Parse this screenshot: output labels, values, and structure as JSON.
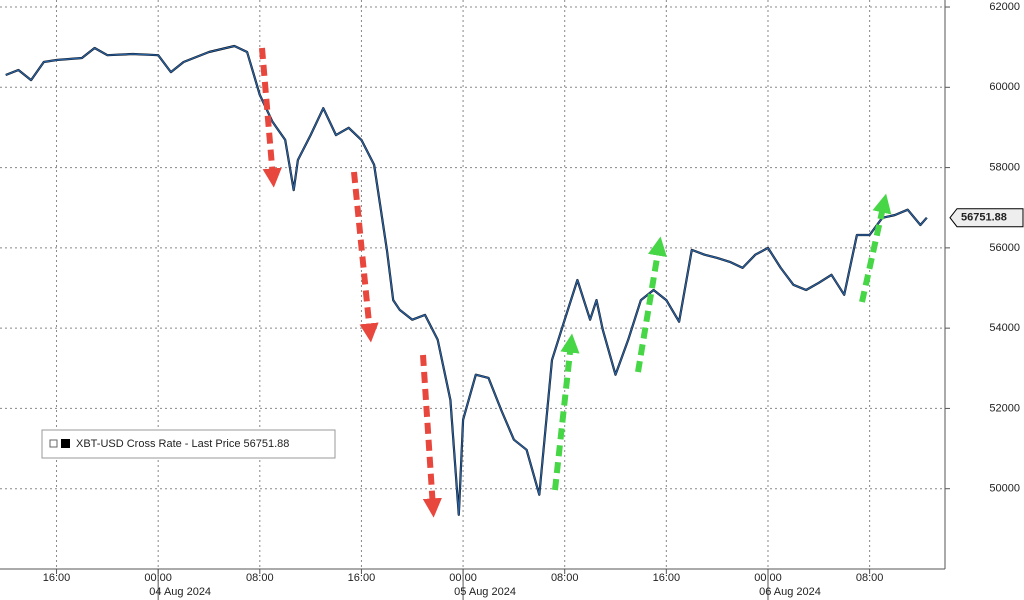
{
  "chart_data": {
    "type": "line",
    "series": [
      {
        "name": "XBT-USD Cross Rate - Last Price",
        "color": "#2a5f9e",
        "last_value": 56751.88,
        "x": [
          "2024-08-03T12:00",
          "2024-08-03T13:00",
          "2024-08-03T14:00",
          "2024-08-03T15:00",
          "2024-08-03T16:00",
          "2024-08-03T18:00",
          "2024-08-03T19:00",
          "2024-08-03T20:00",
          "2024-08-03T22:00",
          "2024-08-04T00:00",
          "2024-08-04T01:00",
          "2024-08-04T02:00",
          "2024-08-04T04:00",
          "2024-08-04T06:00",
          "2024-08-04T07:00",
          "2024-08-04T08:00",
          "2024-08-04T09:00",
          "2024-08-04T10:00",
          "2024-08-04T10:40",
          "2024-08-04T11:00",
          "2024-08-04T12:00",
          "2024-08-04T13:00",
          "2024-08-04T14:00",
          "2024-08-04T15:00",
          "2024-08-04T16:00",
          "2024-08-04T17:00",
          "2024-08-04T18:00",
          "2024-08-04T18:30",
          "2024-08-04T19:00",
          "2024-08-04T20:00",
          "2024-08-04T21:00",
          "2024-08-04T22:00",
          "2024-08-04T23:00",
          "2024-08-04T23:40",
          "2024-08-05T00:00",
          "2024-08-05T01:00",
          "2024-08-05T02:00",
          "2024-08-05T03:00",
          "2024-08-05T04:00",
          "2024-08-05T05:00",
          "2024-08-05T06:00",
          "2024-08-05T07:00",
          "2024-08-05T08:00",
          "2024-08-05T09:00",
          "2024-08-05T10:00",
          "2024-08-05T10:30",
          "2024-08-05T11:00",
          "2024-08-05T12:00",
          "2024-08-05T13:00",
          "2024-08-05T14:00",
          "2024-08-05T15:00",
          "2024-08-05T16:00",
          "2024-08-05T17:00",
          "2024-08-05T18:00",
          "2024-08-05T19:00",
          "2024-08-05T20:00",
          "2024-08-05T21:00",
          "2024-08-05T22:00",
          "2024-08-05T23:00",
          "2024-08-06T00:00",
          "2024-08-06T01:00",
          "2024-08-06T02:00",
          "2024-08-06T03:00",
          "2024-08-06T04:00",
          "2024-08-06T05:00",
          "2024-08-06T06:00",
          "2024-08-06T07:00",
          "2024-08-06T08:00",
          "2024-08-06T09:00",
          "2024-08-06T10:00",
          "2024-08-06T11:00",
          "2024-08-06T12:00",
          "2024-08-06T12:30"
        ],
        "values": [
          60307,
          60430,
          60180,
          60630,
          60680,
          60730,
          60980,
          60800,
          60830,
          60800,
          60380,
          60630,
          60880,
          61030,
          60880,
          59810,
          59140,
          58690,
          57440,
          58190,
          58810,
          59480,
          58810,
          58990,
          58690,
          58070,
          55950,
          54700,
          54460,
          54210,
          54330,
          53710,
          52210,
          49350,
          51720,
          52840,
          52760,
          51960,
          51220,
          50970,
          49850,
          53210,
          54210,
          55200,
          54210,
          54700,
          53960,
          52840,
          53710,
          54700,
          54950,
          54700,
          54160,
          55950,
          55830,
          55750,
          55650,
          55500,
          55830,
          56000,
          55500,
          55080,
          54950,
          55130,
          55330,
          54830,
          56320,
          56320,
          56750,
          56820,
          56950,
          56570,
          56751.88
        ]
      }
    ],
    "xlim": [
      "2024-08-03T11:33",
      "2024-08-06T13:56"
    ],
    "xticks": [
      {
        "value": "2024-08-03T16:00",
        "label": "16:00"
      },
      {
        "value": "2024-08-04T00:00",
        "label": "00:00"
      },
      {
        "value": "2024-08-04T08:00",
        "label": "08:00"
      },
      {
        "value": "2024-08-04T16:00",
        "label": "16:00"
      },
      {
        "value": "2024-08-05T00:00",
        "label": "00:00"
      },
      {
        "value": "2024-08-05T08:00",
        "label": "08:00"
      },
      {
        "value": "2024-08-05T16:00",
        "label": "16:00"
      },
      {
        "value": "2024-08-06T00:00",
        "label": "00:00"
      },
      {
        "value": "2024-08-06T08:00",
        "label": "08:00"
      }
    ],
    "date_labels": [
      {
        "value": "2024-08-04T00:00",
        "label": "04 Aug 2024"
      },
      {
        "value": "2024-08-05T00:00",
        "label": "05 Aug 2024"
      },
      {
        "value": "2024-08-06T00:00",
        "label": "06 Aug 2024"
      }
    ],
    "ylim": [
      48000,
      62175
    ],
    "yticks": [
      50000,
      52000,
      54000,
      56000,
      58000,
      60000,
      62000
    ],
    "grid": true
  }
}
